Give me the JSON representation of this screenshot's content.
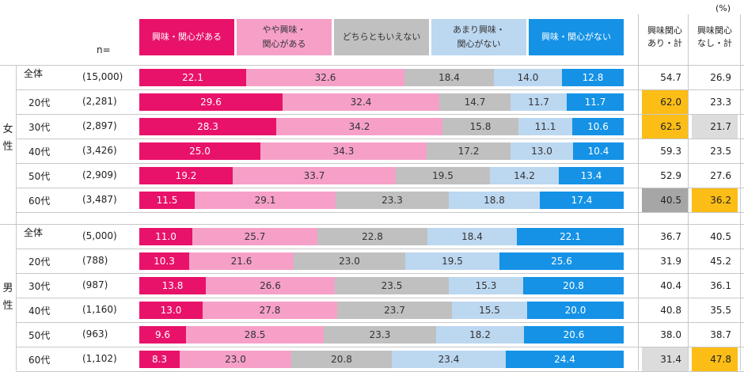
{
  "unit_note": "(%)",
  "n_header": "n=",
  "chart_data": {
    "type": "bar",
    "orientation": "horizontal",
    "stacked": true,
    "normalized": true,
    "xlim": [
      0,
      100
    ],
    "legend": [
      {
        "label": "興味・関心がある",
        "color": "#e8126a",
        "text_color": "#ffffff"
      },
      {
        "label": "やや興味・\n関心がある",
        "color": "#f6a0c8",
        "text_color": "#333333"
      },
      {
        "label": "どちらともいえない",
        "color": "#c0c0c0",
        "text_color": "#333333"
      },
      {
        "label": "あまり興味・\n関心がない",
        "color": "#bcd7f0",
        "text_color": "#333333"
      },
      {
        "label": "興味・関心がない",
        "color": "#1592e6",
        "text_color": "#ffffff"
      }
    ],
    "summary_headers": [
      "興味関心\nあり・計",
      "興味関心\nなし・計"
    ],
    "groups": [
      {
        "name": "女性",
        "label_chars": [
          "女",
          "性"
        ],
        "rows": [
          {
            "label": "全体",
            "n": "(15,000)",
            "values": [
              22.1,
              32.6,
              18.4,
              14.0,
              12.8
            ],
            "labels": [
              "22.1",
              "32.6",
              "18.4",
              "14.0",
              "12.8"
            ],
            "summary": [
              "54.7",
              "26.9"
            ],
            "hl": [
              "",
              ""
            ]
          },
          {
            "label": "20代",
            "n": "(2,281)",
            "values": [
              29.6,
              32.4,
              14.7,
              11.7,
              11.7
            ],
            "labels": [
              "29.6",
              "32.4",
              "14.7",
              "11.7",
              "11.7"
            ],
            "summary": [
              "62.0",
              "23.3"
            ],
            "hl": [
              "#fbbd16",
              ""
            ]
          },
          {
            "label": "30代",
            "n": "(2,897)",
            "values": [
              28.3,
              34.2,
              15.8,
              11.1,
              10.6
            ],
            "labels": [
              "28.3",
              "34.2",
              "15.8",
              "11.1",
              "10.6"
            ],
            "summary": [
              "62.5",
              "21.7"
            ],
            "hl": [
              "#fbbd16",
              "#dcdcdc"
            ]
          },
          {
            "label": "40代",
            "n": "(3,426)",
            "values": [
              25.0,
              34.3,
              17.2,
              13.0,
              10.4
            ],
            "labels": [
              "25.0",
              "34.3",
              "17.2",
              "13.0",
              "10.4"
            ],
            "summary": [
              "59.3",
              "23.5"
            ],
            "hl": [
              "",
              ""
            ]
          },
          {
            "label": "50代",
            "n": "(2,909)",
            "values": [
              19.2,
              33.7,
              19.5,
              14.2,
              13.4
            ],
            "labels": [
              "19.2",
              "33.7",
              "19.5",
              "14.2",
              "13.4"
            ],
            "summary": [
              "52.9",
              "27.6"
            ],
            "hl": [
              "",
              ""
            ]
          },
          {
            "label": "60代",
            "n": "(3,487)",
            "values": [
              11.5,
              29.1,
              23.3,
              18.8,
              17.4
            ],
            "labels": [
              "11.5",
              "29.1",
              "23.3",
              "18.8",
              "17.4"
            ],
            "summary": [
              "40.5",
              "36.2"
            ],
            "hl": [
              "#a6a6a6",
              "#fbbd16"
            ]
          }
        ]
      },
      {
        "name": "男性",
        "label_chars": [
          "男",
          "性"
        ],
        "rows": [
          {
            "label": "全体",
            "n": "(5,000)",
            "values": [
              11.0,
              25.7,
              22.8,
              18.4,
              22.1
            ],
            "labels": [
              "11.0",
              "25.7",
              "22.8",
              "18.4",
              "22.1"
            ],
            "summary": [
              "36.7",
              "40.5"
            ],
            "hl": [
              "",
              ""
            ]
          },
          {
            "label": "20代",
            "n": "(788)",
            "values": [
              10.3,
              21.6,
              23.0,
              19.5,
              25.6
            ],
            "labels": [
              "10.3",
              "21.6",
              "23.0",
              "19.5",
              "25.6"
            ],
            "summary": [
              "31.9",
              "45.2"
            ],
            "hl": [
              "",
              ""
            ]
          },
          {
            "label": "30代",
            "n": "(987)",
            "values": [
              13.8,
              26.6,
              23.5,
              15.3,
              20.8
            ],
            "labels": [
              "13.8",
              "26.6",
              "23.5",
              "15.3",
              "20.8"
            ],
            "summary": [
              "40.4",
              "36.1"
            ],
            "hl": [
              "",
              ""
            ]
          },
          {
            "label": "40代",
            "n": "(1,160)",
            "values": [
              13.0,
              27.8,
              23.7,
              15.5,
              20.0
            ],
            "labels": [
              "13.0",
              "27.8",
              "23.7",
              "15.5",
              "20.0"
            ],
            "summary": [
              "40.8",
              "35.5"
            ],
            "hl": [
              "",
              ""
            ]
          },
          {
            "label": "50代",
            "n": "(963)",
            "values": [
              9.6,
              28.5,
              23.3,
              18.2,
              20.6
            ],
            "labels": [
              "9.6",
              "28.5",
              "23.3",
              "18.2",
              "20.6"
            ],
            "summary": [
              "38.0",
              "38.7"
            ],
            "hl": [
              "",
              ""
            ]
          },
          {
            "label": "60代",
            "n": "(1,102)",
            "values": [
              8.3,
              23.0,
              20.8,
              23.4,
              24.4
            ],
            "labels": [
              "8.3",
              "23.0",
              "20.8",
              "23.4",
              "24.4"
            ],
            "summary": [
              "31.4",
              "47.8"
            ],
            "hl": [
              "#dcdcdc",
              "#fbbd16"
            ]
          }
        ]
      }
    ]
  }
}
